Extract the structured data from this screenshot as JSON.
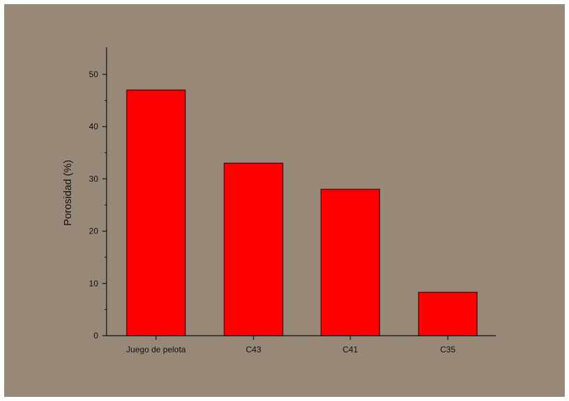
{
  "colors": {
    "background": "#978878",
    "bar_fill": "#ff0000",
    "bar_stroke": "#5a1010",
    "axis": "#111111"
  },
  "chart_data": {
    "type": "bar",
    "categories": [
      "Juego de pelota",
      "C43",
      "C41",
      "C35"
    ],
    "values": [
      47,
      33,
      28,
      8.3
    ],
    "title": "",
    "xlabel": "",
    "ylabel": "Porosidad (%)",
    "ylim": [
      0,
      55
    ],
    "yticks": [
      0,
      10,
      20,
      30,
      40,
      50
    ],
    "grid": false,
    "legend": "none"
  }
}
